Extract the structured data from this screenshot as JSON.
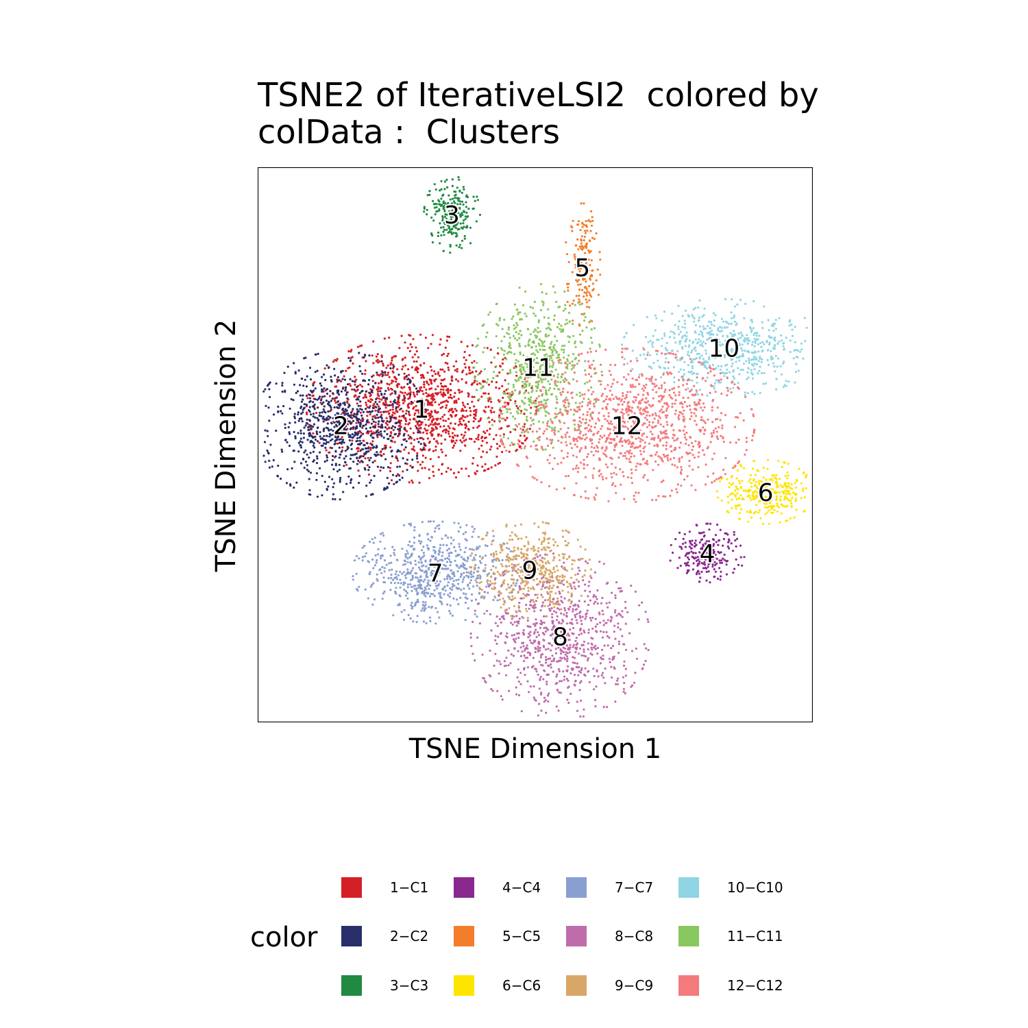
{
  "chart_data": {
    "type": "scatter",
    "title": "TSNE2 of IterativeLSI2  colored by\ncolData :  Clusters",
    "xlabel": "TSNE Dimension 1",
    "ylabel": "TSNE Dimension 2",
    "xlim": [
      0,
      100
    ],
    "ylim": [
      0,
      100
    ],
    "grid": false,
    "legend": {
      "title": "color",
      "placement": "bottom"
    },
    "series": [
      {
        "name": "1-C1",
        "label": "1",
        "color": "#D51F26",
        "center": [
          29.5,
          56.5
        ],
        "spread": [
          9.0,
          5.8
        ],
        "count": 1200
      },
      {
        "name": "2-C2",
        "label": "2",
        "color": "#272E6A",
        "center": [
          15.0,
          53.5
        ],
        "spread": [
          6.8,
          5.8
        ],
        "count": 850
      },
      {
        "name": "3-C3",
        "label": "3",
        "color": "#208A42",
        "center": [
          35.0,
          91.5
        ],
        "spread": [
          2.2,
          3.0
        ],
        "count": 220
      },
      {
        "name": "4-C4",
        "label": "4",
        "color": "#89288F",
        "center": [
          81.0,
          30.5
        ],
        "spread": [
          3.0,
          2.3
        ],
        "count": 220
      },
      {
        "name": "5-C5",
        "label": "5",
        "color": "#F47D2B",
        "center": [
          58.5,
          82.0
        ],
        "spread": [
          1.4,
          5.0
        ],
        "count": 170
      },
      {
        "name": "6-C6",
        "label": "6",
        "color": "#FEE500",
        "center": [
          91.5,
          41.5
        ],
        "spread": [
          3.8,
          2.5
        ],
        "count": 300
      },
      {
        "name": "7-C7",
        "label": "7",
        "color": "#8A9FD1",
        "center": [
          32.0,
          27.0
        ],
        "spread": [
          6.5,
          4.0
        ],
        "count": 650
      },
      {
        "name": "8-C8",
        "label": "8",
        "color": "#C06CAB",
        "center": [
          54.5,
          15.5
        ],
        "spread": [
          7.0,
          6.5
        ],
        "count": 800
      },
      {
        "name": "9-C9",
        "label": "9",
        "color": "#D8A767",
        "center": [
          49.0,
          27.5
        ],
        "spread": [
          4.8,
          3.8
        ],
        "count": 450
      },
      {
        "name": "10-C10",
        "label": "10",
        "color": "#90D5E4",
        "center": [
          84.0,
          67.5
        ],
        "spread": [
          8.0,
          3.8
        ],
        "count": 600
      },
      {
        "name": "11-C11",
        "label": "11",
        "color": "#89C75F",
        "center": [
          50.5,
          64.0
        ],
        "spread": [
          5.0,
          6.5
        ],
        "count": 600
      },
      {
        "name": "12-C12",
        "label": "12",
        "color": "#F37B7D",
        "center": [
          66.5,
          53.5
        ],
        "spread": [
          10.0,
          6.0
        ],
        "count": 1100
      }
    ]
  }
}
